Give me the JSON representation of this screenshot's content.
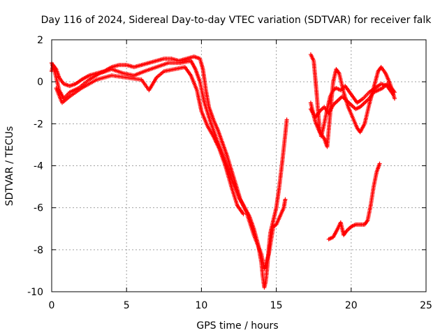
{
  "chart_data": {
    "type": "scatter",
    "title": "Day 116 of 2024, Sidereal Day-to-day VTEC variation (SDTVAR) for receiver falk",
    "xlabel": "GPS time / hours",
    "ylabel": "SDTVAR / TECUs",
    "xlim": [
      0,
      25
    ],
    "ylim": [
      -10,
      2
    ],
    "x_ticks": [
      0,
      5,
      10,
      15,
      20,
      25
    ],
    "y_ticks": [
      -10,
      -8,
      -6,
      -4,
      -2,
      0,
      2
    ],
    "x_tick_labels": [
      "0",
      "5",
      "10",
      "15",
      "20",
      "25"
    ],
    "y_tick_labels": [
      "-10",
      "-8",
      "-6",
      "-4",
      "-2",
      "0",
      "2"
    ],
    "grid": true,
    "legend": "none",
    "marker": "plus",
    "color": "#ff0000",
    "series": [
      {
        "points": [
          [
            0.0,
            0.5
          ],
          [
            0.1,
            0.8
          ],
          [
            0.3,
            0.6
          ],
          [
            0.5,
            0.2
          ],
          [
            0.8,
            -0.1
          ],
          [
            1.2,
            -0.2
          ],
          [
            1.6,
            -0.1
          ],
          [
            2.0,
            0.1
          ],
          [
            2.5,
            0.3
          ],
          [
            3.0,
            0.4
          ],
          [
            3.5,
            0.5
          ],
          [
            4.0,
            0.7
          ],
          [
            4.5,
            0.8
          ],
          [
            5.0,
            0.8
          ],
          [
            5.5,
            0.7
          ],
          [
            6.0,
            0.8
          ],
          [
            6.5,
            0.9
          ],
          [
            7.0,
            1.0
          ],
          [
            7.5,
            1.1
          ],
          [
            8.0,
            1.1
          ],
          [
            8.5,
            1.0
          ],
          [
            9.0,
            1.1
          ],
          [
            9.5,
            1.2
          ],
          [
            9.9,
            1.1
          ],
          [
            10.1,
            0.6
          ],
          [
            10.3,
            -0.4
          ],
          [
            10.5,
            -1.2
          ],
          [
            10.8,
            -1.8
          ],
          [
            11.1,
            -2.3
          ],
          [
            11.4,
            -2.9
          ],
          [
            11.7,
            -3.5
          ],
          [
            12.0,
            -4.2
          ],
          [
            12.3,
            -4.9
          ],
          [
            12.6,
            -5.6
          ],
          [
            12.9,
            -6.0
          ],
          [
            13.2,
            -6.4
          ],
          [
            13.5,
            -7.0
          ],
          [
            13.8,
            -7.8
          ],
          [
            14.0,
            -8.6
          ],
          [
            14.1,
            -9.3
          ],
          [
            14.2,
            -9.8
          ],
          [
            14.3,
            -9.5
          ],
          [
            14.4,
            -8.8
          ],
          [
            14.5,
            -7.9
          ],
          [
            14.6,
            -7.2
          ],
          [
            14.8,
            -6.6
          ],
          [
            15.0,
            -6.0
          ],
          [
            15.2,
            -5.0
          ],
          [
            15.4,
            -3.8
          ],
          [
            15.6,
            -2.5
          ],
          [
            15.7,
            -1.8
          ]
        ]
      },
      {
        "points": [
          [
            0.0,
            0.9
          ],
          [
            0.2,
            0.5
          ],
          [
            0.5,
            -0.4
          ],
          [
            0.8,
            -0.8
          ],
          [
            1.2,
            -0.5
          ],
          [
            1.8,
            -0.3
          ],
          [
            2.5,
            0.1
          ],
          [
            3.2,
            0.4
          ],
          [
            4.0,
            0.6
          ],
          [
            4.8,
            0.4
          ],
          [
            5.5,
            0.3
          ],
          [
            6.2,
            0.5
          ],
          [
            7.0,
            0.7
          ],
          [
            7.8,
            0.9
          ],
          [
            8.6,
            0.9
          ],
          [
            9.3,
            1.0
          ],
          [
            9.6,
            0.6
          ],
          [
            9.9,
            0.0
          ],
          [
            10.2,
            -1.0
          ],
          [
            10.6,
            -1.9
          ],
          [
            11.0,
            -2.7
          ],
          [
            11.5,
            -3.6
          ],
          [
            12.0,
            -4.6
          ],
          [
            12.5,
            -5.5
          ],
          [
            13.0,
            -6.2
          ],
          [
            13.5,
            -7.3
          ],
          [
            14.0,
            -8.2
          ],
          [
            14.2,
            -8.9
          ],
          [
            14.5,
            -8.2
          ],
          [
            14.8,
            -6.9
          ],
          [
            15.0,
            -6.8
          ],
          [
            15.5,
            -6.0
          ],
          [
            15.6,
            -5.6
          ]
        ]
      },
      {
        "points": [
          [
            0.3,
            -0.3
          ],
          [
            0.7,
            -1.0
          ],
          [
            1.2,
            -0.7
          ],
          [
            2.0,
            -0.3
          ],
          [
            3.0,
            0.1
          ],
          [
            4.0,
            0.3
          ],
          [
            5.0,
            0.2
          ],
          [
            6.0,
            0.1
          ],
          [
            6.5,
            -0.4
          ],
          [
            7.0,
            0.2
          ],
          [
            7.5,
            0.5
          ],
          [
            8.2,
            0.6
          ],
          [
            8.9,
            0.7
          ],
          [
            9.3,
            0.3
          ],
          [
            9.7,
            -0.4
          ],
          [
            10.0,
            -1.4
          ],
          [
            10.4,
            -2.1
          ],
          [
            10.8,
            -2.6
          ],
          [
            11.2,
            -3.2
          ],
          [
            11.6,
            -4.0
          ],
          [
            12.0,
            -5.0
          ],
          [
            12.4,
            -5.9
          ],
          [
            12.8,
            -6.3
          ]
        ]
      },
      {
        "points": [
          [
            17.3,
            1.3
          ],
          [
            17.5,
            1.0
          ],
          [
            17.6,
            0.2
          ],
          [
            17.7,
            -0.6
          ],
          [
            17.8,
            -1.5
          ],
          [
            17.9,
            -2.3
          ],
          [
            18.0,
            -2.6
          ],
          [
            18.2,
            -2.0
          ],
          [
            18.4,
            -1.3
          ],
          [
            18.6,
            -0.7
          ],
          [
            18.8,
            -0.4
          ],
          [
            19.0,
            -0.3
          ],
          [
            19.3,
            -0.4
          ],
          [
            19.6,
            -0.2
          ],
          [
            20.0,
            -0.6
          ],
          [
            20.4,
            -1.0
          ],
          [
            20.8,
            -0.8
          ],
          [
            21.2,
            -0.5
          ],
          [
            21.6,
            -0.3
          ],
          [
            22.0,
            -0.1
          ],
          [
            22.4,
            -0.2
          ],
          [
            22.8,
            -0.6
          ]
        ]
      },
      {
        "points": [
          [
            17.3,
            -1.0
          ],
          [
            17.6,
            -1.9
          ],
          [
            17.9,
            -2.4
          ],
          [
            18.2,
            -2.7
          ],
          [
            18.4,
            -3.1
          ],
          [
            18.6,
            -1.5
          ],
          [
            18.8,
            0.0
          ],
          [
            19.0,
            0.6
          ],
          [
            19.2,
            0.4
          ],
          [
            19.5,
            -0.5
          ],
          [
            19.8,
            -1.2
          ],
          [
            20.1,
            -1.7
          ],
          [
            20.4,
            -2.2
          ],
          [
            20.6,
            -2.4
          ],
          [
            20.9,
            -2.0
          ],
          [
            21.2,
            -1.1
          ],
          [
            21.5,
            -0.3
          ],
          [
            21.8,
            0.5
          ],
          [
            22.0,
            0.7
          ],
          [
            22.3,
            0.4
          ],
          [
            22.6,
            -0.1
          ],
          [
            22.9,
            -0.8
          ]
        ]
      },
      {
        "points": [
          [
            17.3,
            -1.3
          ],
          [
            17.6,
            -1.7
          ],
          [
            17.9,
            -1.4
          ],
          [
            18.2,
            -1.2
          ],
          [
            18.5,
            -1.5
          ],
          [
            18.8,
            -1.1
          ],
          [
            19.1,
            -0.9
          ],
          [
            19.4,
            -0.7
          ],
          [
            19.7,
            -0.9
          ],
          [
            20.0,
            -1.1
          ],
          [
            20.3,
            -1.3
          ],
          [
            20.6,
            -1.2
          ],
          [
            20.9,
            -1.0
          ],
          [
            21.2,
            -0.8
          ],
          [
            21.5,
            -0.5
          ],
          [
            21.8,
            -0.4
          ],
          [
            22.1,
            -0.3
          ],
          [
            22.4,
            -0.1
          ],
          [
            22.7,
            -0.3
          ],
          [
            22.9,
            -0.5
          ]
        ]
      },
      {
        "points": [
          [
            18.5,
            -7.5
          ],
          [
            18.8,
            -7.4
          ],
          [
            19.1,
            -7.0
          ],
          [
            19.3,
            -6.7
          ],
          [
            19.5,
            -7.3
          ],
          [
            19.7,
            -7.1
          ],
          [
            20.0,
            -6.9
          ],
          [
            20.3,
            -6.8
          ],
          [
            20.6,
            -6.8
          ],
          [
            20.9,
            -6.8
          ],
          [
            21.1,
            -6.6
          ],
          [
            21.3,
            -5.9
          ],
          [
            21.5,
            -5.0
          ],
          [
            21.7,
            -4.3
          ],
          [
            21.9,
            -3.9
          ]
        ]
      }
    ]
  }
}
